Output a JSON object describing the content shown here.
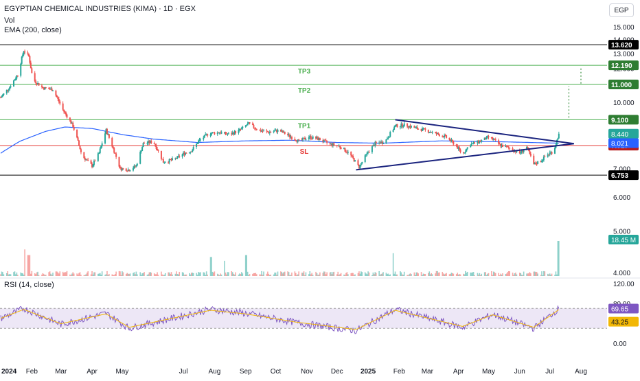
{
  "header": {
    "title": "EGYPTIAN CHEMICAL INDUSTRIES (KIMA) · 1D · EGX",
    "volume_label": "Vol",
    "ema_label": "EMA (200, close)",
    "currency": "EGP"
  },
  "rsi_panel": {
    "label": "RSI (14, close)",
    "ticks": [
      "120.00",
      "80.00",
      "0.00"
    ],
    "badges": [
      {
        "text": "69.65",
        "value": 69.65,
        "color": "#7e57c2"
      },
      {
        "text": "43.25",
        "value": 43.25,
        "color": "#f2b705"
      }
    ]
  },
  "colors": {
    "up": "#26a69a",
    "down": "#ef5350",
    "ema": "#2962ff",
    "trendline": "#1a237e",
    "target": "#4caf50",
    "stop": "#e53935",
    "resistance": "#000000",
    "rsi": "#7e57c2",
    "rsi_ma": "#f2b705",
    "rsi_band": "#ede7f6",
    "grid": "#f0f3fa"
  },
  "chart_data": {
    "type": "candlestick",
    "title": "EGYPTIAN CHEMICAL INDUSTRIES (KIMA) · 1D · EGX",
    "x_tick_labels": [
      "2024",
      "Feb",
      "Mar",
      "Apr",
      "May",
      "Jul",
      "Aug",
      "Sep",
      "Oct",
      "Nov",
      "Dec",
      "2025",
      "Feb",
      "Mar",
      "Apr",
      "May",
      "Jun",
      "Jul",
      "Aug"
    ],
    "y_tick_labels": [
      "15.000",
      "14.000",
      "13.000",
      "12.000",
      "10.000",
      "7.000",
      "6.000",
      "5.000",
      "4.000"
    ],
    "y_scale": "log",
    "price_anchors": [
      {
        "date": "2024-01-01",
        "close": 10.25
      },
      {
        "date": "2024-01-10",
        "close": 10.85
      },
      {
        "date": "2024-01-18",
        "close": 11.6
      },
      {
        "date": "2024-01-24",
        "close": 13.2
      },
      {
        "date": "2024-01-29",
        "close": 12.8
      },
      {
        "date": "2024-02-02",
        "close": 11.3
      },
      {
        "date": "2024-02-12",
        "close": 10.8
      },
      {
        "date": "2024-02-22",
        "close": 10.7
      },
      {
        "date": "2024-03-03",
        "close": 9.6
      },
      {
        "date": "2024-03-13",
        "close": 8.8
      },
      {
        "date": "2024-03-22",
        "close": 7.5
      },
      {
        "date": "2024-04-01",
        "close": 7.1
      },
      {
        "date": "2024-04-08",
        "close": 7.6
      },
      {
        "date": "2024-04-15",
        "close": 8.6
      },
      {
        "date": "2024-04-22",
        "close": 7.8
      },
      {
        "date": "2024-04-29",
        "close": 7.0
      },
      {
        "date": "2024-05-08",
        "close": 6.95
      },
      {
        "date": "2024-05-15",
        "close": 7.1
      },
      {
        "date": "2024-05-22",
        "close": 8.0
      },
      {
        "date": "2024-06-01",
        "close": 8.1
      },
      {
        "date": "2024-06-11",
        "close": 7.25
      },
      {
        "date": "2024-06-22",
        "close": 7.35
      },
      {
        "date": "2024-07-02",
        "close": 7.6
      },
      {
        "date": "2024-07-09",
        "close": 7.7
      },
      {
        "date": "2024-07-16",
        "close": 8.1
      },
      {
        "date": "2024-07-26",
        "close": 8.45
      },
      {
        "date": "2024-08-06",
        "close": 8.5
      },
      {
        "date": "2024-08-16",
        "close": 8.4
      },
      {
        "date": "2024-08-26",
        "close": 8.6
      },
      {
        "date": "2024-09-04",
        "close": 8.9
      },
      {
        "date": "2024-09-14",
        "close": 8.6
      },
      {
        "date": "2024-09-24",
        "close": 8.5
      },
      {
        "date": "2024-10-04",
        "close": 8.6
      },
      {
        "date": "2024-10-14",
        "close": 8.35
      },
      {
        "date": "2024-10-24",
        "close": 8.1
      },
      {
        "date": "2024-11-03",
        "close": 8.3
      },
      {
        "date": "2024-11-13",
        "close": 8.2
      },
      {
        "date": "2024-11-23",
        "close": 8.0
      },
      {
        "date": "2024-12-03",
        "close": 7.9
      },
      {
        "date": "2024-12-13",
        "close": 7.6
      },
      {
        "date": "2024-12-23",
        "close": 7.05
      },
      {
        "date": "2025-01-01",
        "close": 7.65
      },
      {
        "date": "2025-01-08",
        "close": 8.0
      },
      {
        "date": "2025-01-18",
        "close": 8.1
      },
      {
        "date": "2025-01-28",
        "close": 8.8
      },
      {
        "date": "2025-02-07",
        "close": 8.85
      },
      {
        "date": "2025-02-17",
        "close": 8.7
      },
      {
        "date": "2025-02-27",
        "close": 8.6
      },
      {
        "date": "2025-03-09",
        "close": 8.45
      },
      {
        "date": "2025-03-19",
        "close": 8.3
      },
      {
        "date": "2025-03-29",
        "close": 7.95
      },
      {
        "date": "2025-04-05",
        "close": 7.55
      },
      {
        "date": "2025-04-12",
        "close": 7.95
      },
      {
        "date": "2025-04-22",
        "close": 8.1
      },
      {
        "date": "2025-05-02",
        "close": 8.3
      },
      {
        "date": "2025-05-12",
        "close": 7.95
      },
      {
        "date": "2025-05-22",
        "close": 7.8
      },
      {
        "date": "2025-06-01",
        "close": 7.6
      },
      {
        "date": "2025-06-08",
        "close": 7.85
      },
      {
        "date": "2025-06-15",
        "close": 7.15
      },
      {
        "date": "2025-06-22",
        "close": 7.3
      },
      {
        "date": "2025-06-29",
        "close": 7.55
      },
      {
        "date": "2025-07-05",
        "close": 7.7
      },
      {
        "date": "2025-07-10",
        "close": 8.44
      }
    ],
    "ema200_anchors": [
      {
        "date": "2024-01-01",
        "close": 7.6
      },
      {
        "date": "2024-01-20",
        "close": 8.1
      },
      {
        "date": "2024-02-15",
        "close": 8.55
      },
      {
        "date": "2024-03-05",
        "close": 8.75
      },
      {
        "date": "2024-04-01",
        "close": 8.68
      },
      {
        "date": "2024-05-01",
        "close": 8.4
      },
      {
        "date": "2024-06-01",
        "close": 8.2
      },
      {
        "date": "2024-07-15",
        "close": 8.05
      },
      {
        "date": "2024-09-01",
        "close": 8.12
      },
      {
        "date": "2024-10-15",
        "close": 8.15
      },
      {
        "date": "2024-12-01",
        "close": 8.05
      },
      {
        "date": "2025-01-15",
        "close": 8.02
      },
      {
        "date": "2025-03-15",
        "close": 8.12
      },
      {
        "date": "2025-05-15",
        "close": 8.08
      },
      {
        "date": "2025-07-10",
        "close": 8.021
      }
    ],
    "volume_spikes_millions": [
      {
        "date": "2024-01-26",
        "volume": 14
      },
      {
        "date": "2024-01-29",
        "volume": 11
      },
      {
        "date": "2024-07-28",
        "volume": 10
      },
      {
        "date": "2024-08-10",
        "volume": 8
      },
      {
        "date": "2024-09-01",
        "volume": 11
      },
      {
        "date": "2025-01-25",
        "volume": 12
      },
      {
        "date": "2025-07-10",
        "volume": 18.45
      }
    ],
    "rsi_anchors": [
      {
        "date": "2024-01-01",
        "rsi": 50
      },
      {
        "date": "2024-01-24",
        "rsi": 70
      },
      {
        "date": "2024-03-01",
        "rsi": 38
      },
      {
        "date": "2024-04-15",
        "rsi": 60
      },
      {
        "date": "2024-05-08",
        "rsi": 30
      },
      {
        "date": "2024-07-28",
        "rsi": 68
      },
      {
        "date": "2024-09-01",
        "rsi": 60
      },
      {
        "date": "2024-10-20",
        "rsi": 42
      },
      {
        "date": "2024-12-20",
        "rsi": 25
      },
      {
        "date": "2025-01-28",
        "rsi": 68
      },
      {
        "date": "2025-04-05",
        "rsi": 32
      },
      {
        "date": "2025-05-05",
        "rsi": 58
      },
      {
        "date": "2025-06-15",
        "rsi": 30
      },
      {
        "date": "2025-07-10",
        "rsi": 69.65
      }
    ],
    "horizontal_levels": [
      {
        "label": "",
        "value": 13.62,
        "badge": "13.620",
        "color": "#000000",
        "badge_color": "#000000"
      },
      {
        "label": "TP3",
        "value": 12.19,
        "badge": "12.190",
        "color": "#4caf50",
        "badge_color": "#2e7d32"
      },
      {
        "label": "TP2",
        "value": 11.0,
        "badge": "11.000",
        "color": "#4caf50",
        "badge_color": "#2e7d32"
      },
      {
        "label": "TP1",
        "value": 9.1,
        "badge": "9.100",
        "color": "#4caf50",
        "badge_color": "#2e7d32"
      },
      {
        "label": "SL",
        "value": 7.917,
        "badge": "7.917",
        "color": "#e53935",
        "badge_color": "#b71c1c"
      },
      {
        "label": "",
        "value": 6.753,
        "badge": "6.753",
        "color": "#000000",
        "badge_color": "#000000"
      }
    ],
    "price_badges": [
      {
        "text": "8.440",
        "value": 8.44,
        "color": "#26a69a"
      },
      {
        "text": "8.021",
        "value": 8.021,
        "color": "#2962ff"
      },
      {
        "text": "18.45 M",
        "value": 18.45,
        "color": "#26a69a"
      }
    ],
    "triangle_upper": [
      {
        "date": "2025-01-28",
        "price": 9.1
      },
      {
        "date": "2025-07-25",
        "price": 8.0
      }
    ],
    "triangle_lower": [
      {
        "date": "2024-12-20",
        "price": 6.95
      },
      {
        "date": "2025-07-25",
        "price": 8.0
      }
    ],
    "target_arrows": [
      {
        "date": "2025-07-20",
        "from": 9.2,
        "to": 10.9
      },
      {
        "date": "2025-08-01",
        "from": 11.05,
        "to": 12.1
      }
    ]
  }
}
